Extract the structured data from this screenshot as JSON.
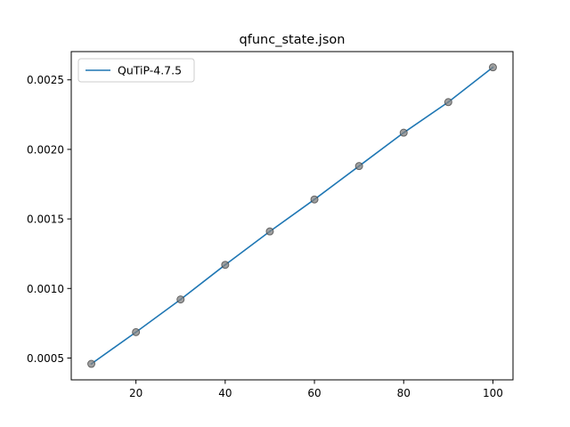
{
  "chart_data": {
    "type": "line",
    "title": "qfunc_state.json",
    "xlabel": "",
    "ylabel": "",
    "xlim": [
      5.5,
      104.5
    ],
    "ylim": [
      0.000343,
      0.002703
    ],
    "x_ticks": [
      20,
      40,
      60,
      80,
      100
    ],
    "x_tick_labels": [
      "20",
      "40",
      "60",
      "80",
      "100"
    ],
    "y_ticks": [
      0.0005,
      0.001,
      0.0015,
      0.002,
      0.0025
    ],
    "y_tick_labels": [
      "0.0005",
      "0.0010",
      "0.0015",
      "0.0020",
      "0.0025"
    ],
    "grid": false,
    "legend_position": "top-left",
    "series": [
      {
        "name": "QuTiP-4.7.5",
        "color": "#1f77b4",
        "x": [
          10,
          20,
          30,
          40,
          50,
          60,
          70,
          80,
          90,
          100
        ],
        "y": [
          0.000458,
          0.000686,
          0.000921,
          0.00117,
          0.00141,
          0.00164,
          0.00188,
          0.00212,
          0.00234,
          0.00259
        ]
      }
    ],
    "markers": {
      "color": "#808080",
      "edge_color": "#404040",
      "x": [
        10,
        20,
        30,
        40,
        50,
        60,
        70,
        80,
        90,
        100
      ],
      "y": [
        0.000458,
        0.000686,
        0.000921,
        0.00117,
        0.00141,
        0.00164,
        0.00188,
        0.00212,
        0.00234,
        0.00259
      ]
    }
  }
}
